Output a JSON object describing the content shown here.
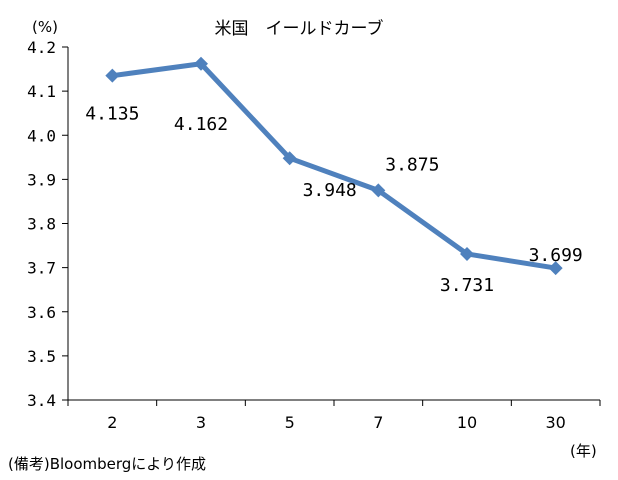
{
  "chart_data": {
    "type": "line",
    "title": "米国　イールドカーブ",
    "y_unit_label": "(%)",
    "x_unit_label": "(年)",
    "categories": [
      "2",
      "3",
      "5",
      "7",
      "10",
      "30"
    ],
    "series": [
      {
        "values": [
          4.135,
          4.162,
          3.948,
          3.875,
          3.731,
          3.699
        ]
      }
    ],
    "data_labels": [
      "4.135",
      "4.162",
      "3.948",
      "3.875",
      "3.731",
      "3.699"
    ],
    "ylim": [
      3.4,
      4.2
    ],
    "yticks": [
      "3.4",
      "3.5",
      "3.6",
      "3.7",
      "3.8",
      "3.9",
      "4.0",
      "4.1",
      "4.2"
    ],
    "grid": false,
    "legend": "none",
    "line_color": "#4F81BD",
    "source_note": "(備考)Bloombergにより作成"
  }
}
